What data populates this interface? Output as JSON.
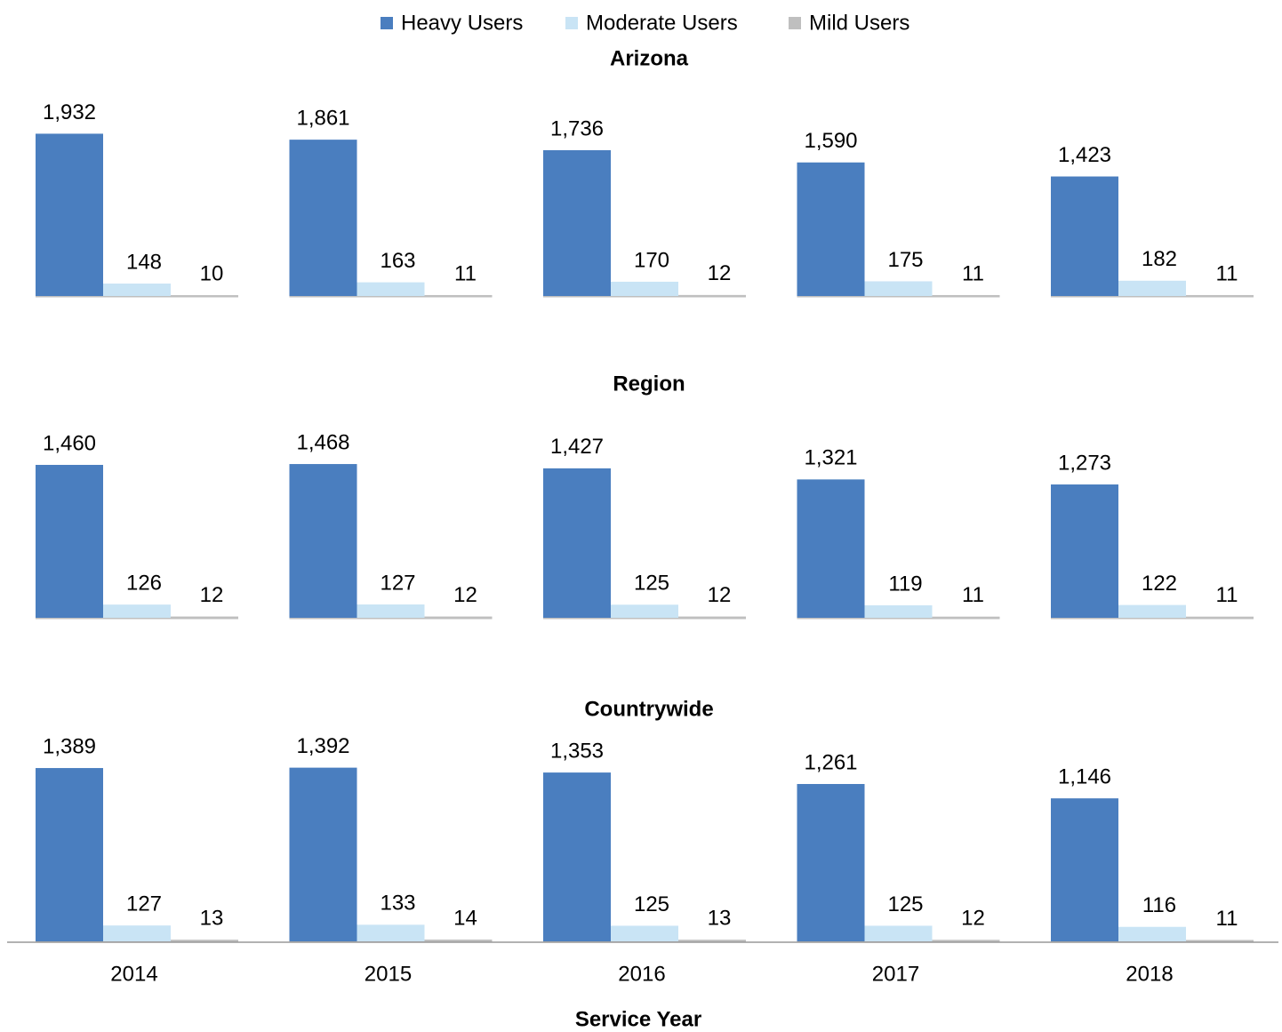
{
  "chart_data": {
    "type": "bar",
    "categories": [
      "2014",
      "2015",
      "2016",
      "2017",
      "2018"
    ],
    "x_label": "Service Year",
    "series": [
      {
        "name": "Heavy Users",
        "color": "#4a7ebf"
      },
      {
        "name": "Moderate Users",
        "color": "#c9e4f5"
      },
      {
        "name": "Mild Users",
        "color": "#bfbfbf"
      }
    ],
    "panels": [
      {
        "title": "Arizona",
        "ylim": [
          0,
          2000
        ],
        "values": [
          [
            1932,
            1861,
            1736,
            1590,
            1423
          ],
          [
            148,
            163,
            170,
            175,
            182
          ],
          [
            10,
            11,
            12,
            11,
            11
          ]
        ],
        "value_labels": [
          [
            "1,932",
            "1,861",
            "1,736",
            "1,590",
            "1,423"
          ],
          [
            "148",
            "163",
            "170",
            "175",
            "182"
          ],
          [
            "10",
            "11",
            "12",
            "11",
            "11"
          ]
        ]
      },
      {
        "title": "Region",
        "ylim": [
          0,
          1600
        ],
        "values": [
          [
            1460,
            1468,
            1427,
            1321,
            1273
          ],
          [
            126,
            127,
            125,
            119,
            122
          ],
          [
            12,
            12,
            12,
            11,
            11
          ]
        ],
        "value_labels": [
          [
            "1,460",
            "1,468",
            "1,427",
            "1,321",
            "1,273"
          ],
          [
            "126",
            "127",
            "125",
            "119",
            "122"
          ],
          [
            "12",
            "12",
            "12",
            "11",
            "11"
          ]
        ]
      },
      {
        "title": "Countrywide",
        "ylim": [
          0,
          1400
        ],
        "values": [
          [
            1389,
            1392,
            1353,
            1261,
            1146
          ],
          [
            127,
            133,
            125,
            125,
            116
          ],
          [
            13,
            14,
            13,
            12,
            11
          ]
        ],
        "value_labels": [
          [
            "1,389",
            "1,392",
            "1,353",
            "1,261",
            "1,146"
          ],
          [
            "127",
            "133",
            "125",
            "125",
            "116"
          ],
          [
            "13",
            "14",
            "13",
            "12",
            "11"
          ]
        ]
      }
    ]
  }
}
